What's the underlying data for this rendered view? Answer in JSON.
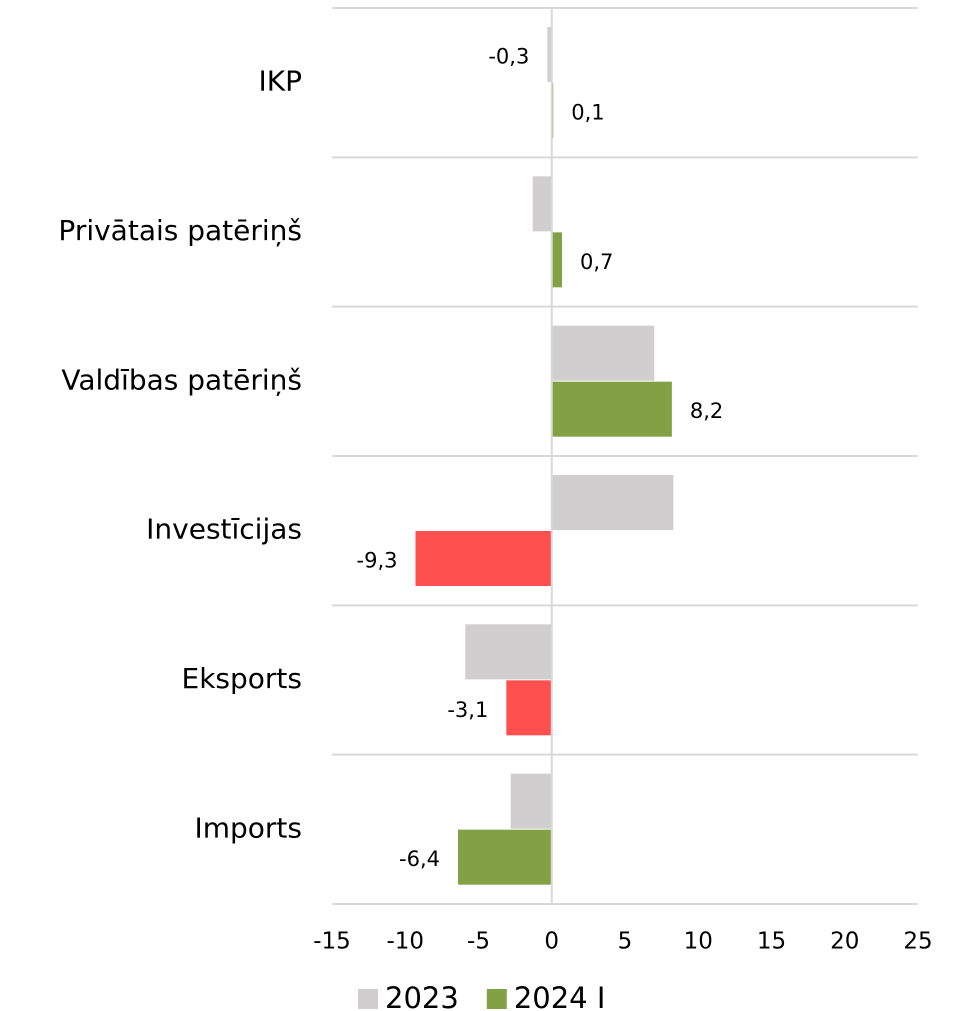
{
  "chart_data": {
    "type": "hbar",
    "categories": [
      "IKP",
      "Privātais patēriņš",
      "Valdības patēriņš",
      "Investīcijas",
      "Eksports",
      "Imports"
    ],
    "series": [
      {
        "name": "2023",
        "color": "#d0cece",
        "values": [
          -0.3,
          -1.3,
          7.0,
          8.3,
          -5.9,
          -2.8
        ],
        "value_labels": [
          "-0,3",
          null,
          null,
          null,
          null,
          null
        ]
      },
      {
        "name": "2024 I",
        "color": "#82a044",
        "colors": [
          "#82a044",
          "#82a044",
          "#82a044",
          "#ff5050",
          "#ff5050",
          "#82a044"
        ],
        "values": [
          0.1,
          0.7,
          8.2,
          -9.3,
          -3.1,
          -6.4
        ],
        "value_labels": [
          "0,1",
          "0,7",
          "8,2",
          "-9,3",
          "-3,1",
          "-6,4"
        ]
      }
    ],
    "xlim": [
      -15,
      25
    ],
    "xticks": [
      -15,
      -10,
      -5,
      0,
      5,
      10,
      15,
      20,
      25
    ],
    "legend": "bottom"
  }
}
